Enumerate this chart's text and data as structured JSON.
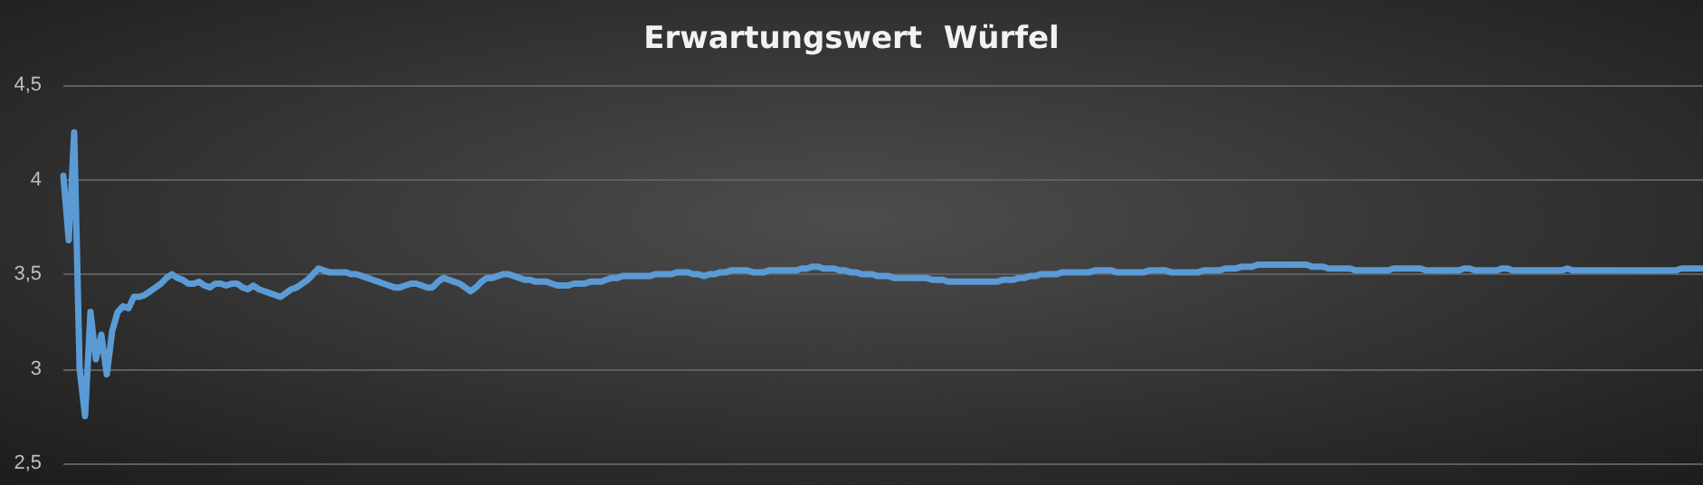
{
  "chart_data": {
    "type": "line",
    "title": "Erwartungswert  Würfel",
    "categories": [
      null,
      null,
      null,
      null,
      null,
      null,
      null,
      null,
      null,
      null,
      null,
      null,
      null,
      null,
      null,
      null,
      null,
      null,
      null,
      null,
      null,
      null,
      null,
      null,
      null,
      null,
      null,
      null,
      null,
      null,
      null,
      null,
      null,
      null,
      null,
      null,
      null,
      null,
      null,
      null,
      null,
      null,
      null,
      null,
      null,
      null,
      null,
      null,
      null,
      null,
      null,
      null,
      null,
      null,
      null,
      null,
      null,
      null,
      null,
      null,
      null,
      null,
      null,
      null,
      null,
      null,
      null,
      null,
      null,
      null,
      null,
      null,
      null,
      null,
      null,
      null,
      null,
      null,
      null,
      null,
      null,
      null,
      null,
      null,
      null,
      null,
      null,
      null,
      null,
      null,
      null,
      null,
      null,
      null,
      null,
      null,
      null,
      null,
      null,
      null,
      null,
      null,
      null,
      null,
      null,
      null,
      null,
      null,
      null,
      null,
      null,
      null,
      null,
      null,
      null,
      null,
      null,
      null,
      null,
      null,
      null,
      null,
      null,
      null,
      null,
      null,
      null,
      null,
      null,
      null,
      null,
      null,
      null,
      null,
      null,
      null,
      null,
      null,
      null,
      null,
      null,
      null,
      null,
      null,
      null,
      null,
      null,
      null,
      null,
      null,
      null,
      null,
      null,
      null,
      null,
      null,
      null,
      null,
      null,
      null,
      null,
      null,
      null,
      null,
      null,
      null,
      null,
      null,
      null,
      null,
      null,
      null,
      null,
      null,
      null,
      null,
      null,
      null,
      null,
      null,
      null,
      null,
      null,
      null,
      null,
      null,
      null,
      null,
      null,
      null,
      null,
      null,
      null,
      null,
      null,
      null,
      null,
      null,
      null,
      null,
      null,
      null,
      null,
      null,
      null,
      null,
      null,
      null,
      null,
      null,
      null,
      null,
      null,
      null,
      null,
      null,
      null,
      null,
      null,
      null,
      null,
      null,
      null,
      null,
      null,
      null,
      null,
      null,
      null,
      null,
      null,
      null,
      null,
      null,
      null,
      null,
      null,
      null,
      null,
      null,
      null,
      null,
      null,
      null,
      null,
      null,
      null,
      null,
      null,
      null,
      null,
      null,
      null,
      null,
      null,
      null,
      null,
      null,
      null,
      null,
      null,
      null,
      null,
      null,
      null,
      null,
      null,
      null,
      null,
      null,
      null,
      null,
      null,
      null,
      null,
      null,
      null,
      null,
      null,
      null,
      null,
      null,
      null,
      null,
      null,
      null,
      null,
      null,
      null,
      null,
      null,
      null,
      null,
      null,
      null,
      null,
      null,
      null,
      null,
      null,
      null,
      null,
      null
    ],
    "series": [
      {
        "color": "#5b9bd5",
        "values": [
          4.02,
          3.68,
          4.25,
          3.0,
          2.75,
          3.3,
          3.05,
          3.18,
          2.97,
          3.2,
          3.3,
          3.33,
          3.32,
          3.38,
          3.38,
          3.39,
          3.41,
          3.43,
          3.45,
          3.48,
          3.5,
          3.48,
          3.47,
          3.45,
          3.45,
          3.46,
          3.44,
          3.43,
          3.45,
          3.45,
          3.44,
          3.45,
          3.45,
          3.43,
          3.42,
          3.44,
          3.42,
          3.41,
          3.4,
          3.39,
          3.38,
          3.4,
          3.42,
          3.43,
          3.45,
          3.47,
          3.5,
          3.53,
          3.52,
          3.51,
          3.51,
          3.51,
          3.51,
          3.5,
          3.5,
          3.49,
          3.48,
          3.47,
          3.46,
          3.45,
          3.44,
          3.43,
          3.43,
          3.44,
          3.45,
          3.45,
          3.44,
          3.43,
          3.43,
          3.46,
          3.48,
          3.47,
          3.46,
          3.45,
          3.43,
          3.41,
          3.43,
          3.46,
          3.48,
          3.48,
          3.49,
          3.5,
          3.5,
          3.49,
          3.48,
          3.47,
          3.47,
          3.46,
          3.46,
          3.46,
          3.45,
          3.44,
          3.44,
          3.44,
          3.45,
          3.45,
          3.45,
          3.46,
          3.46,
          3.46,
          3.47,
          3.48,
          3.48,
          3.49,
          3.49,
          3.49,
          3.49,
          3.49,
          3.49,
          3.5,
          3.5,
          3.5,
          3.5,
          3.51,
          3.51,
          3.51,
          3.5,
          3.5,
          3.49,
          3.5,
          3.5,
          3.51,
          3.51,
          3.52,
          3.52,
          3.52,
          3.52,
          3.51,
          3.51,
          3.51,
          3.52,
          3.52,
          3.52,
          3.52,
          3.52,
          3.52,
          3.53,
          3.53,
          3.54,
          3.54,
          3.53,
          3.53,
          3.53,
          3.52,
          3.52,
          3.51,
          3.51,
          3.5,
          3.5,
          3.5,
          3.49,
          3.49,
          3.49,
          3.48,
          3.48,
          3.48,
          3.48,
          3.48,
          3.48,
          3.48,
          3.47,
          3.47,
          3.47,
          3.46,
          3.46,
          3.46,
          3.46,
          3.46,
          3.46,
          3.46,
          3.46,
          3.46,
          3.46,
          3.47,
          3.47,
          3.47,
          3.48,
          3.48,
          3.49,
          3.49,
          3.5,
          3.5,
          3.5,
          3.5,
          3.51,
          3.51,
          3.51,
          3.51,
          3.51,
          3.51,
          3.52,
          3.52,
          3.52,
          3.52,
          3.51,
          3.51,
          3.51,
          3.51,
          3.51,
          3.51,
          3.52,
          3.52,
          3.52,
          3.52,
          3.51,
          3.51,
          3.51,
          3.51,
          3.51,
          3.51,
          3.52,
          3.52,
          3.52,
          3.52,
          3.53,
          3.53,
          3.53,
          3.54,
          3.54,
          3.54,
          3.55,
          3.55,
          3.55,
          3.55,
          3.55,
          3.55,
          3.55,
          3.55,
          3.55,
          3.55,
          3.54,
          3.54,
          3.54,
          3.53,
          3.53,
          3.53,
          3.53,
          3.53,
          3.52,
          3.52,
          3.52,
          3.52,
          3.52,
          3.52,
          3.52,
          3.53,
          3.53,
          3.53,
          3.53,
          3.53,
          3.53,
          3.52,
          3.52,
          3.52,
          3.52,
          3.52,
          3.52,
          3.52,
          3.53,
          3.53,
          3.52,
          3.52,
          3.52,
          3.52,
          3.52,
          3.53,
          3.53,
          3.52,
          3.52,
          3.52,
          3.52,
          3.52,
          3.52,
          3.52,
          3.52,
          3.52,
          3.52,
          3.53,
          3.52,
          3.52,
          3.52,
          3.52,
          3.52,
          3.52,
          3.52,
          3.52,
          3.52,
          3.52,
          3.52,
          3.52,
          3.52,
          3.52,
          3.52,
          3.52,
          3.52,
          3.52,
          3.52,
          3.52,
          3.53,
          3.53,
          3.53,
          3.53,
          3.53
        ]
      }
    ],
    "ylim": [
      2.5,
      4.5
    ],
    "yticks": [
      {
        "value": 2.5,
        "label": "2,5"
      },
      {
        "value": 3,
        "label": "3"
      },
      {
        "value": 3.5,
        "label": "3,5"
      },
      {
        "value": 4,
        "label": "4"
      },
      {
        "value": 4.5,
        "label": "4,5"
      }
    ],
    "tick_labels": "y",
    "grid": "y",
    "line_style": "solid"
  }
}
